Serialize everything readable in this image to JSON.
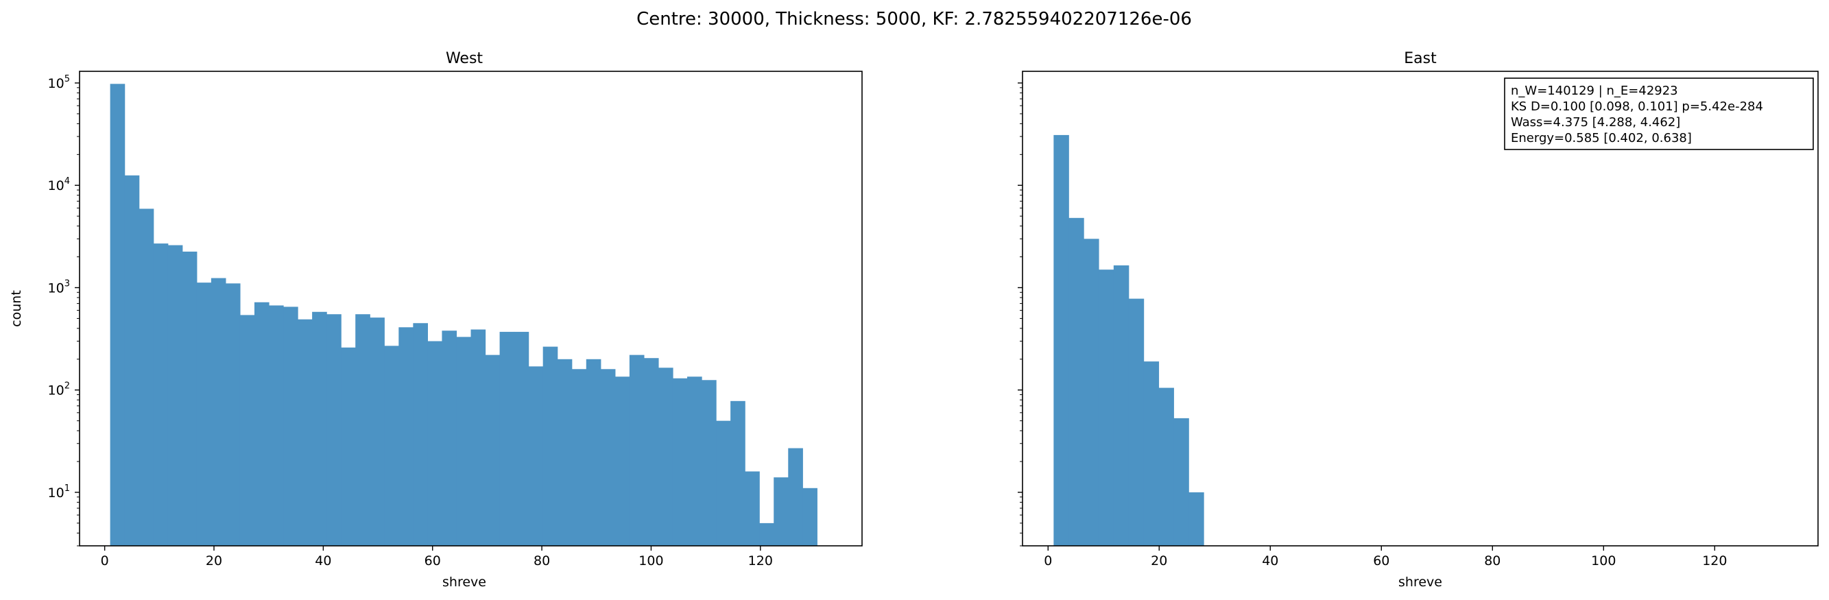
{
  "figure": {
    "suptitle": "Centre: 30000, Thickness: 5000, KF: 2.782559402207126e-06"
  },
  "chart_data": [
    {
      "type": "bar",
      "title": "West",
      "xlabel": "shreve",
      "ylabel": "count",
      "yscale": "log",
      "xlim": [
        -4.6,
        138.6
      ],
      "ylim": [
        3.0,
        130000
      ],
      "xticks": [
        0,
        20,
        40,
        60,
        80,
        100,
        120
      ],
      "yticks": [
        {
          "value": 10,
          "label": "10^1"
        },
        {
          "value": 100,
          "label": "10^2"
        },
        {
          "value": 1000,
          "label": "10^3"
        },
        {
          "value": 10000,
          "label": "10^4"
        },
        {
          "value": 100000,
          "label": "10^5"
        }
      ],
      "bar_color": "#4c93c4",
      "bins": [
        1,
        3.64,
        6.28,
        8.92,
        11.56,
        14.2,
        16.84,
        19.48,
        22.12,
        24.76,
        27.4,
        30.04,
        32.68,
        35.32,
        37.96,
        40.6,
        43.24,
        45.88,
        48.52,
        51.16,
        53.8,
        56.44,
        59.08,
        61.72,
        64.36,
        67,
        69.64,
        72.28,
        74.92,
        77.56,
        80.2,
        82.84,
        85.48,
        88.12,
        90.76,
        93.4,
        96.04,
        98.68,
        101.32,
        103.96,
        106.6,
        109.24,
        111.88,
        114.52,
        117.16,
        119.8,
        122.44,
        125.08,
        127.72,
        130.36,
        133
      ],
      "counts": [
        98000,
        12500,
        5900,
        2700,
        2600,
        2250,
        1120,
        1240,
        1100,
        540,
        720,
        670,
        650,
        490,
        580,
        550,
        260,
        550,
        510,
        270,
        410,
        450,
        300,
        380,
        330,
        390,
        220,
        370,
        370,
        170,
        265,
        200,
        160,
        200,
        160,
        135,
        220,
        205,
        165,
        130,
        135,
        125,
        50,
        78,
        16,
        5,
        14,
        27,
        11,
        0
      ],
      "grid": false
    },
    {
      "type": "bar",
      "title": "East",
      "xlabel": "shreve",
      "ylabel": "",
      "yscale": "log",
      "xlim": [
        -4.6,
        138.6
      ],
      "ylim": [
        3.0,
        130000
      ],
      "xticks": [
        0,
        20,
        40,
        60,
        80,
        100,
        120
      ],
      "bar_color": "#4c93c4",
      "bins": [
        1,
        3.7,
        6.4,
        9.1,
        11.8,
        14.5,
        17.2,
        19.9,
        22.6,
        25.3,
        28
      ],
      "counts": [
        31000,
        4800,
        3000,
        1500,
        1650,
        780,
        190,
        105,
        53,
        10
      ],
      "grid": false,
      "annotation_lines": [
        "n_W=140129 | n_E=42923",
        "KS D=0.100 [0.098, 0.101]  p=5.42e-284",
        "Wass=4.375 [4.288, 4.462]",
        "Energy=0.585 [0.402, 0.638]"
      ]
    }
  ]
}
